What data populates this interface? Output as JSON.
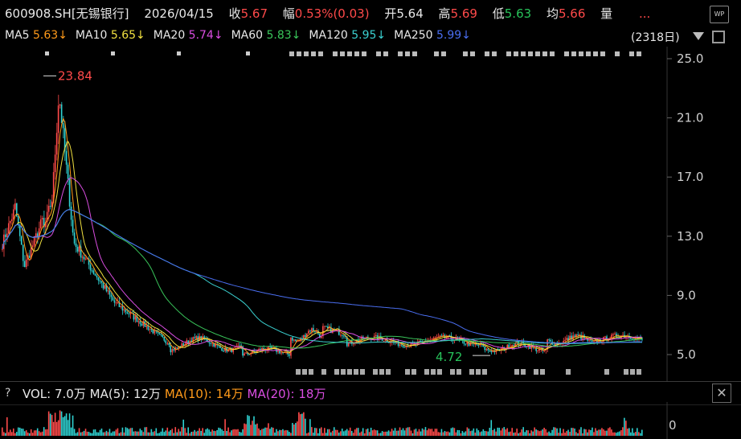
{
  "header": {
    "code": "600908.SH[无锡银行]",
    "date": "2026/04/15",
    "close_label": "收",
    "close_value": "5.67",
    "change_label": "幅",
    "change_value": "0.53%(0.03)",
    "open_label": "开",
    "open_value": "5.64",
    "high_label": "高",
    "high_value": "5.69",
    "low_label": "低",
    "low_value": "5.63",
    "avg_label": "均",
    "avg_value": "5.66",
    "volume_label": "量",
    "more_label": "..."
  },
  "ma_row": [
    {
      "label": "MA5",
      "value": "5.63↓",
      "color": "#ff9a1a"
    },
    {
      "label": "MA10",
      "value": "5.65↓",
      "color": "#f0e040"
    },
    {
      "label": "MA20",
      "value": "5.74↓",
      "color": "#d94de0"
    },
    {
      "label": "MA60",
      "value": "5.83↓",
      "color": "#39c55a"
    },
    {
      "label": "MA120",
      "value": "5.95↓",
      "color": "#3ad0d0"
    },
    {
      "label": "MA250",
      "value": "5.99↓",
      "color": "#4a6ef0"
    }
  ],
  "span_label": "(2318日)",
  "icons": {
    "wp": "WP",
    "close": "✕",
    "help": "?"
  },
  "price_axis": [
    "25.0",
    "21.0",
    "17.0",
    "13.0",
    "9.0",
    "5.0"
  ],
  "annotations": {
    "high": "23.84",
    "low": "4.72"
  },
  "volume_row": {
    "vol_label": "VOL:",
    "vol_value": "7.0万",
    "ma5_label": "MA(5):",
    "ma5_value": "12万",
    "ma10_label": "MA(10):",
    "ma10_value": "14万",
    "ma20_label": "MA(20):",
    "ma20_value": "18万"
  },
  "volume_axis": [
    "0"
  ],
  "colors": {
    "up": "#ff4a4a",
    "down": "#27c25a",
    "ma5": "#ff9a1a",
    "ma10": "#f0e040",
    "ma20": "#d94de0",
    "ma60": "#39c55a",
    "ma120": "#3ad0d0",
    "ma250": "#4a6ef0"
  }
}
